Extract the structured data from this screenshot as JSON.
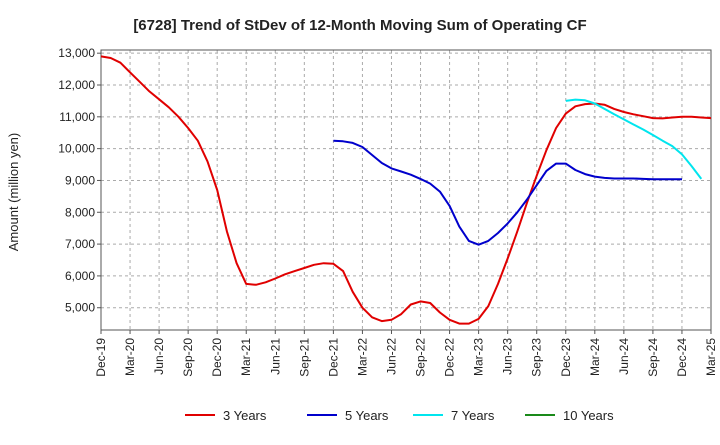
{
  "chart_data": {
    "type": "line",
    "title": "[6728]  Trend of StDev of 12-Month Moving Sum of Operating CF",
    "xlabel": "",
    "ylabel": "Amount (million yen)",
    "ylim": [
      4300,
      13100
    ],
    "yticks": [
      5000,
      6000,
      7000,
      8000,
      9000,
      10000,
      11000,
      12000,
      13000
    ],
    "ytick_labels": [
      "5,000",
      "6,000",
      "7,000",
      "8,000",
      "9,000",
      "10,000",
      "11,000",
      "12,000",
      "13,000"
    ],
    "x_start": "Dec-19",
    "x_end": "Mar-25",
    "xtick_labels": [
      "Dec-19",
      "Mar-20",
      "Jun-20",
      "Sep-20",
      "Dec-20",
      "Mar-21",
      "Jun-21",
      "Sep-21",
      "Dec-21",
      "Mar-22",
      "Jun-22",
      "Sep-22",
      "Dec-22",
      "Mar-23",
      "Jun-23",
      "Sep-23",
      "Dec-23",
      "Mar-24",
      "Jun-24",
      "Sep-24",
      "Dec-24",
      "Mar-25"
    ],
    "grid": true,
    "legend_position": "bottom",
    "series": [
      {
        "name": "3 Years",
        "color": "#e00000",
        "start": "Dec-19",
        "values": [
          12900,
          12850,
          12700,
          12400,
          12100,
          11800,
          11550,
          11300,
          11000,
          10650,
          10250,
          9600,
          8700,
          7400,
          6400,
          5750,
          5720,
          5800,
          5920,
          6050,
          6150,
          6250,
          6350,
          6400,
          6380,
          6150,
          5500,
          5000,
          4700,
          4580,
          4620,
          4800,
          5100,
          5200,
          5150,
          4850,
          4620,
          4500,
          4500,
          4650,
          5050,
          5750,
          6550,
          7400,
          8300,
          9150,
          9950,
          10650,
          11100,
          11330,
          11400,
          11420,
          11380,
          11250,
          11150,
          11080,
          11020,
          10960,
          10950,
          10980,
          11000,
          11000,
          10980,
          10960
        ]
      },
      {
        "name": "5 Years",
        "color": "#0000cc",
        "start": "Dec-21",
        "values": [
          10250,
          10230,
          10180,
          10050,
          9800,
          9550,
          9380,
          9280,
          9180,
          9050,
          8900,
          8650,
          8200,
          7550,
          7100,
          6980,
          7100,
          7350,
          7650,
          8000,
          8400,
          8850,
          9300,
          9530,
          9530,
          9330,
          9200,
          9120,
          9080,
          9060,
          9060,
          9060,
          9050,
          9040,
          9040,
          9040,
          9040
        ]
      },
      {
        "name": "7 Years",
        "color": "#00e5ee",
        "start": "Dec-23",
        "values": [
          11500,
          11540,
          11520,
          11420,
          11250,
          11080,
          10920,
          10760,
          10600,
          10430,
          10250,
          10080,
          9820,
          9450,
          9050
        ]
      },
      {
        "name": "10 Years",
        "color": "#1a8a1a",
        "start": "Dec-24",
        "values": []
      }
    ]
  }
}
